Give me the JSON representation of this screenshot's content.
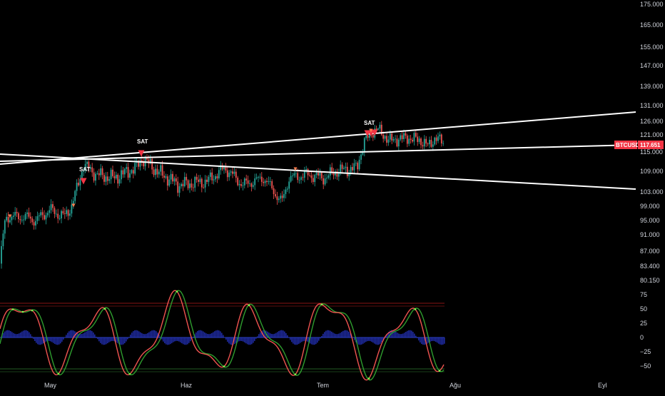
{
  "ticker": "BTCUSD",
  "last_price": "117.651",
  "colors": {
    "background": "#000000",
    "bull_candle": "#26a69a",
    "bear_candle": "#ef5350",
    "trendline": "#ffffff",
    "sell_signal": "#f23645",
    "small_signal": "#ff7f50",
    "osc_fast": "#ef5350",
    "osc_slow": "#2e9d2e",
    "osc_hist": "#1e2a9e",
    "osc_zero": "#2b3ec0",
    "osc_upper": "#b71c1c",
    "osc_lower": "#2e7d32",
    "cross_marker": "#7cff4f",
    "badge": "#f23645"
  },
  "price_axis": {
    "ticks": [
      "175.000",
      "165.000",
      "155.000",
      "147.000",
      "139.000",
      "131.000",
      "126.000",
      "121.000",
      "115.000",
      "109.000",
      "103.000",
      "99.000",
      "95.000",
      "91.000",
      "87.000",
      "83.400",
      "80.150"
    ],
    "scale": "log"
  },
  "oscillator_axis": {
    "ticks": [
      "75",
      "50",
      "25",
      "0",
      "−25",
      "−50"
    ]
  },
  "time_axis": {
    "ticks": [
      "May",
      "Haz",
      "Tem",
      "Ağu",
      "Eyl"
    ]
  },
  "signals": {
    "sell_label": "SAT",
    "overlap_label": "SAT",
    "markers": [
      {
        "label": "SAT",
        "date": "May 29",
        "price": 113
      },
      {
        "label": "SAT",
        "date": "Jun 10",
        "price": 119
      }
    ]
  }
}
